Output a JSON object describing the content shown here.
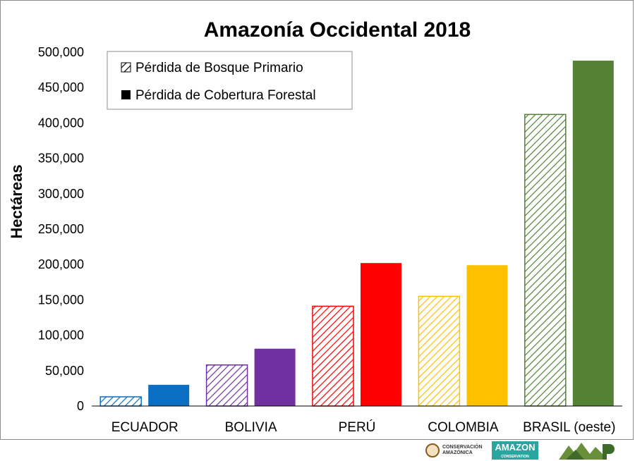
{
  "chart_data": {
    "type": "bar",
    "title": "Amazonía Occidental 2018",
    "xlabel": "",
    "ylabel": "Hectáreas",
    "ylim": [
      0,
      500000
    ],
    "yticks": [
      "0",
      "50,000",
      "100,000",
      "150,000",
      "200,000",
      "250,000",
      "300,000",
      "350,000",
      "400,000",
      "450,000",
      "500,000"
    ],
    "categories": [
      "ECUADOR",
      "BOLIVIA",
      "PERÚ",
      "COLOMBIA",
      "BRASIL (oeste)"
    ],
    "category_colors": [
      "#0a6fc2",
      "#7030a0",
      "#ff0000",
      "#ffc000",
      "#548235"
    ],
    "series": [
      {
        "name": "Pérdida de Bosque Primario",
        "pattern": "hatched",
        "values": [
          13000,
          58000,
          141000,
          155000,
          412000
        ]
      },
      {
        "name": "Pérdida de Cobertura Forestal",
        "pattern": "solid",
        "values": [
          30000,
          81000,
          202000,
          199000,
          488000
        ]
      }
    ],
    "legend_position": "top-left",
    "grid": false
  },
  "logos": {
    "conservacion_line1": "CONSERVACIÓN",
    "conservacion_line2": "AMAZÓNICA",
    "amazon_main": "AMAZON",
    "amazon_sub": "CONSERVATION"
  }
}
